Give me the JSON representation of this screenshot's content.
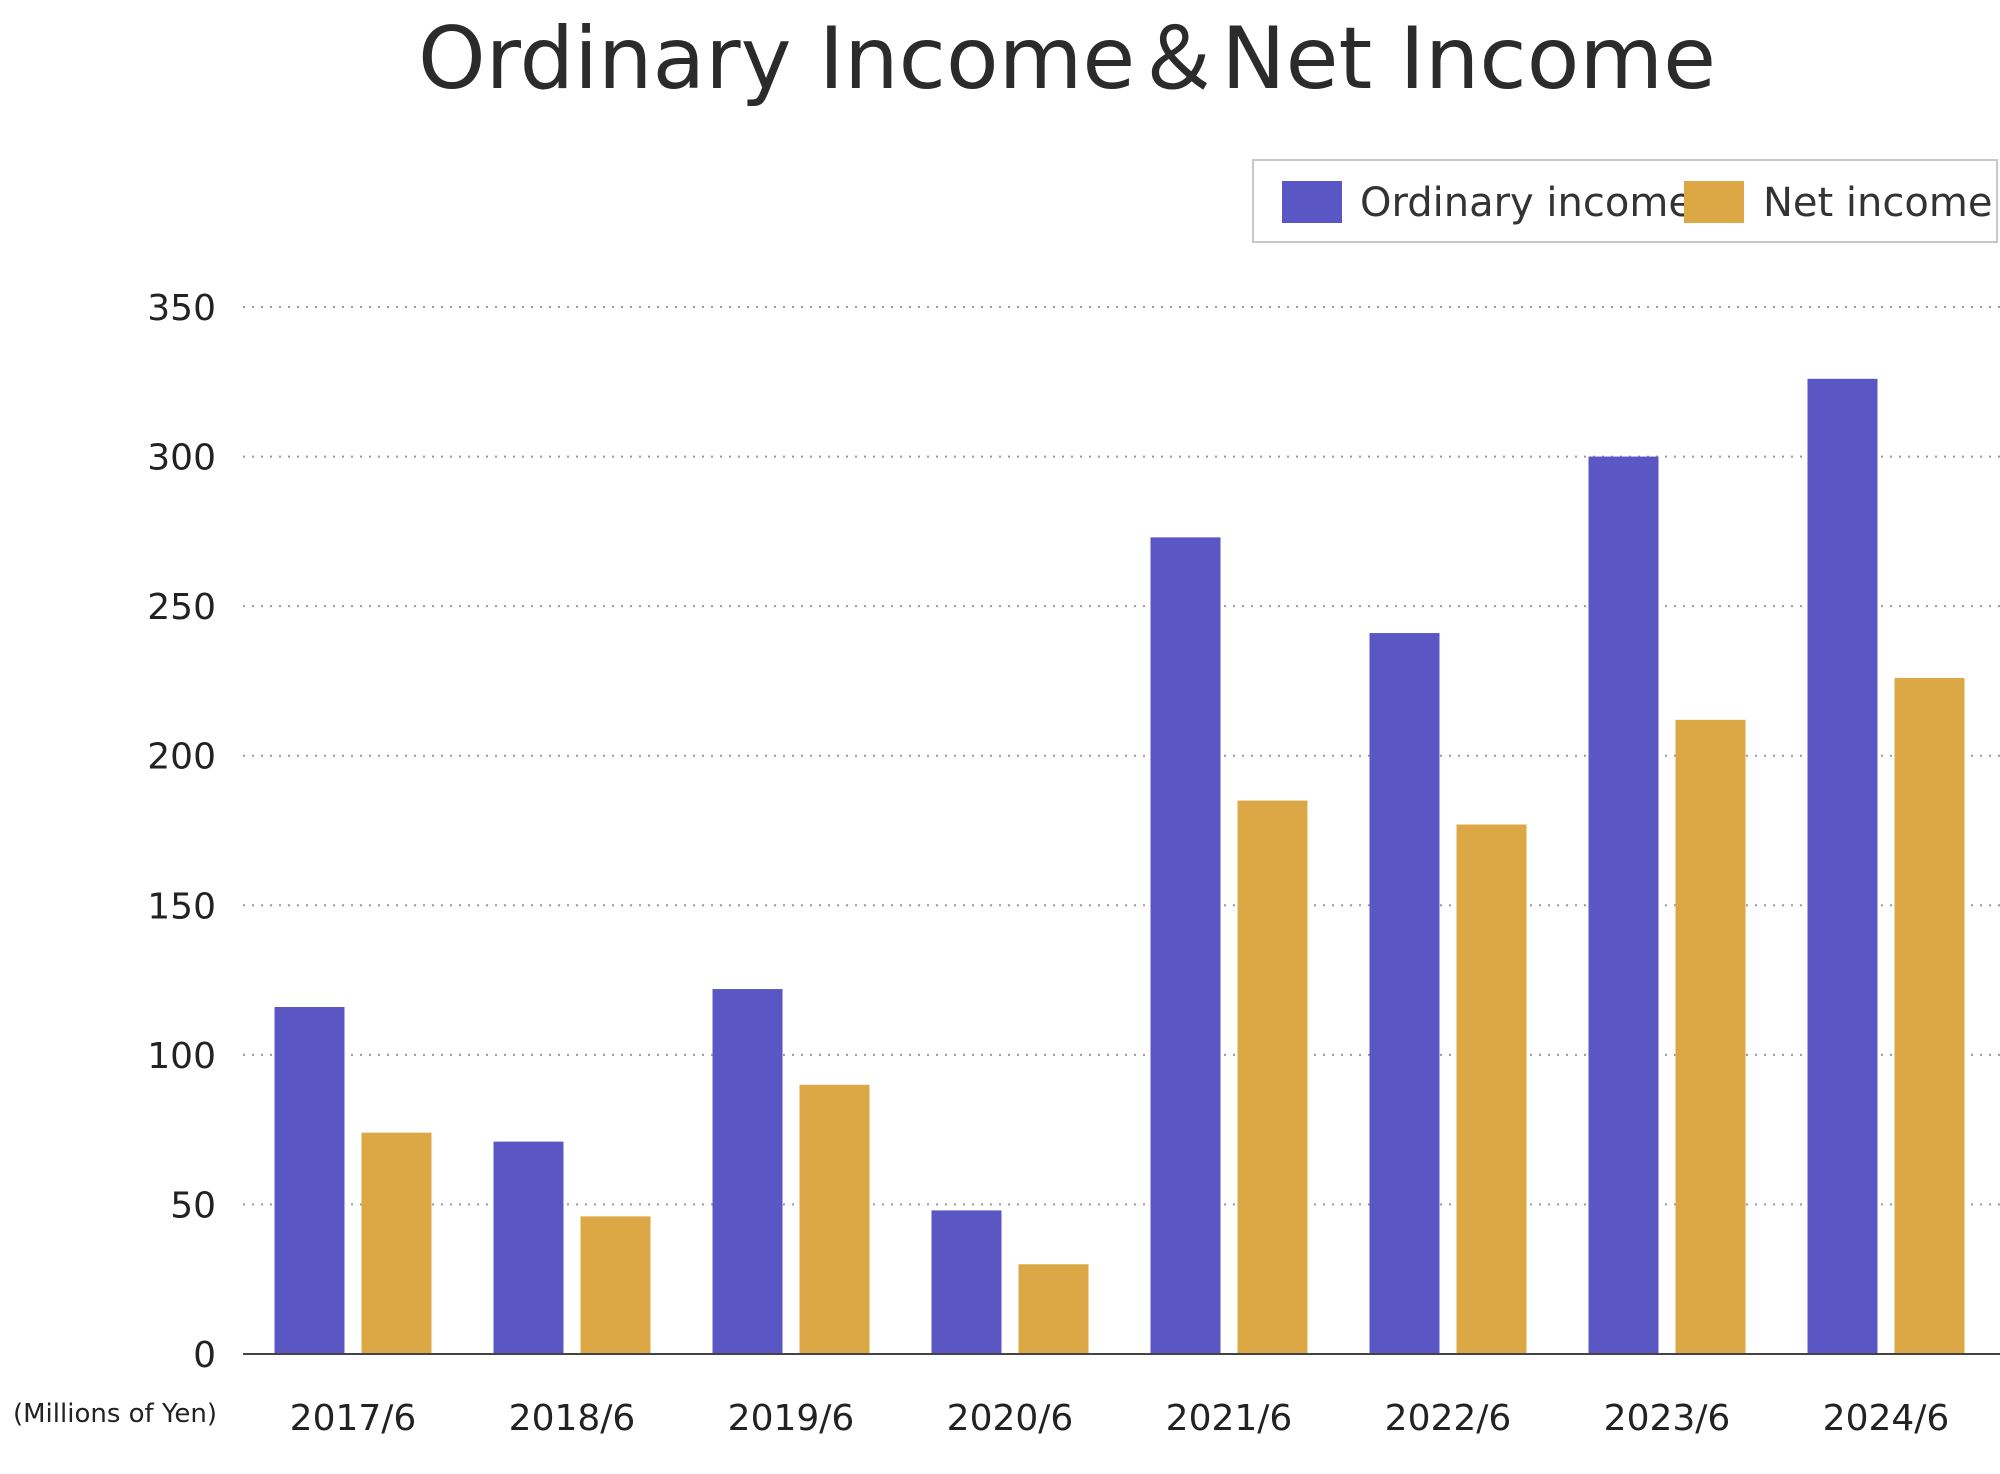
{
  "chart_data": {
    "type": "bar",
    "title": "Ordinary Income＆Net Income",
    "unit_label": "(Millions of Yen)",
    "categories": [
      "2017/6",
      "2018/6",
      "2019/6",
      "2020/6",
      "2021/6",
      "2022/6",
      "2023/6",
      "2024/6"
    ],
    "series": [
      {
        "name": "Ordinary income",
        "color": "#5a57c4",
        "values": [
          116,
          71,
          122,
          48,
          273,
          241,
          300,
          326
        ]
      },
      {
        "name": "Net income",
        "color": "#dba845",
        "values": [
          74,
          46,
          90,
          30,
          185,
          177,
          212,
          226
        ]
      }
    ],
    "ylim": [
      0,
      350
    ],
    "yticks": [
      "0",
      "50",
      "100",
      "150",
      "200",
      "250",
      "300",
      "350"
    ],
    "grid": true,
    "legend_position": "top-right"
  }
}
